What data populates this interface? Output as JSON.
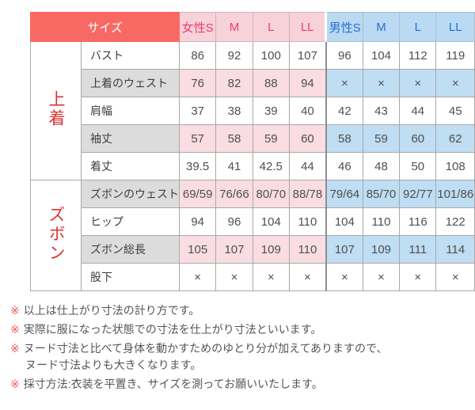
{
  "table": {
    "header": {
      "size_label": "サイズ",
      "female_cols": [
        "女性S",
        "M",
        "L",
        "LL"
      ],
      "male_cols": [
        "男性S",
        "M",
        "L",
        "LL"
      ]
    },
    "groups": [
      {
        "label": "上着",
        "rows": [
          {
            "label": "バスト",
            "highlighted": false,
            "female": [
              "86",
              "92",
              "100",
              "107"
            ],
            "male": [
              "96",
              "104",
              "112",
              "119"
            ]
          },
          {
            "label": "上着のウェスト",
            "highlighted": true,
            "female": [
              "76",
              "82",
              "88",
              "94"
            ],
            "male": [
              "×",
              "×",
              "×",
              "×"
            ]
          },
          {
            "label": "肩幅",
            "highlighted": false,
            "female": [
              "37",
              "38",
              "39",
              "40"
            ],
            "male": [
              "42",
              "43",
              "44",
              "45"
            ]
          },
          {
            "label": "袖丈",
            "highlighted": true,
            "female": [
              "57",
              "58",
              "59",
              "60"
            ],
            "male": [
              "58",
              "59",
              "60",
              "62"
            ]
          },
          {
            "label": "着丈",
            "highlighted": false,
            "female": [
              "39.5",
              "41",
              "42.5",
              "44"
            ],
            "male": [
              "46",
              "48",
              "50",
              "108"
            ]
          }
        ]
      },
      {
        "label": "ズボン",
        "rows": [
          {
            "label": "ズボンのウェスト",
            "highlighted": true,
            "female": [
              "69/59",
              "76/66",
              "80/70",
              "88/78"
            ],
            "male": [
              "79/64",
              "85/70",
              "92/77",
              "101/86"
            ]
          },
          {
            "label": "ヒップ",
            "highlighted": false,
            "female": [
              "94",
              "96",
              "104",
              "110"
            ],
            "male": [
              "104",
              "110",
              "116",
              "122"
            ]
          },
          {
            "label": "ズボン総長",
            "highlighted": true,
            "female": [
              "105",
              "107",
              "109",
              "110"
            ],
            "male": [
              "107",
              "109",
              "111",
              "114"
            ]
          },
          {
            "label": "股下",
            "highlighted": false,
            "female": [
              "×",
              "×",
              "×",
              "×"
            ],
            "male": [
              "×",
              "×",
              "×",
              "×"
            ]
          }
        ]
      }
    ]
  },
  "footnote_marker": "※",
  "footnotes": [
    {
      "text": "以上は仕上がり寸法の計り方です。"
    },
    {
      "text": "実際に服になった状態での寸法を仕上がり寸法といいます。"
    },
    {
      "text": "ヌード寸法と比べて身体を動かすためのゆとり分が加えてありますので、",
      "continuation": "ヌード寸法よりも大きくなります。"
    },
    {
      "text": "採寸方法:衣装を平置き、サイズを測ってお願いいたします。"
    }
  ],
  "colors": {
    "header_red_bg": "#f96963",
    "header_red_text": "#ffffff",
    "female_header_bg": "#f8d2d9",
    "female_header_text": "#ee3d6e",
    "male_header_bg": "#b9daf2",
    "male_header_text": "#2b6fd3",
    "female_cell_bg": "#f9dde3",
    "male_cell_bg": "#bfddf3",
    "label_gray_bg": "#dcdcdc",
    "group_label_text": "#e03131",
    "footnote_marker": "#ef5b5b",
    "border": "#a8a8a8"
  }
}
